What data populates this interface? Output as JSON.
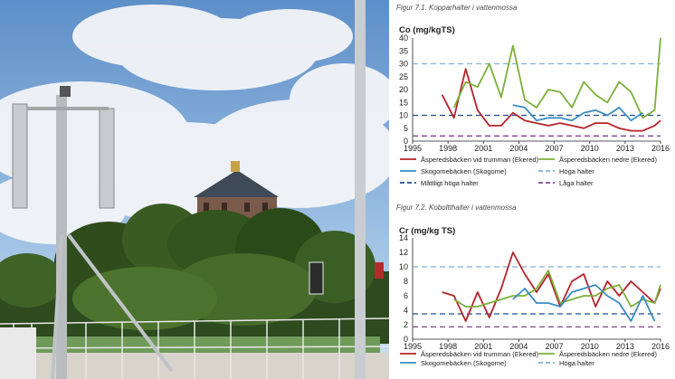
{
  "colors": {
    "red": "#b5232a",
    "green": "#7bb03a",
    "blue": "#3a8cc3",
    "light_blue_dashed": "#7fb0dd",
    "dark_blue_dashed": "#1f4f8f",
    "purple_dashed": "#7b4a8e",
    "axis": "#222222"
  },
  "chart_data": [
    {
      "type": "line",
      "caption": "Figur 7.1. Kopparhalter i vattenmossa",
      "title": "Co (mg/kgTS)",
      "xlabel": "",
      "ylabel": "",
      "xlim": [
        1995,
        2016
      ],
      "ylim": [
        0,
        40
      ],
      "xticks": [
        1995,
        1998,
        2001,
        2004,
        2007,
        2010,
        2013,
        2016
      ],
      "yticks": [
        0,
        5,
        10,
        15,
        20,
        25,
        30,
        35,
        40
      ],
      "series": [
        {
          "name": "Åsperedsbäcken vid trumman (Ekered)",
          "color": "#b5232a",
          "x": [
            1997.5,
            1998.5,
            1999.5,
            2000.5,
            2001.5,
            2002.5,
            2003.5,
            2004.5,
            2005.5,
            2006.5,
            2007.5,
            2008.5,
            2009.5,
            2010.5,
            2011.5,
            2012.5,
            2013.5,
            2014.5,
            2015.5,
            2016
          ],
          "y": [
            18,
            9,
            28,
            12,
            6,
            6,
            11,
            8,
            7,
            6,
            7,
            6,
            5,
            7,
            7,
            5,
            4,
            4,
            6,
            8
          ]
        },
        {
          "name": "Åsperedsbäcken nedre (Ekered)",
          "color": "#7bb03a",
          "x": [
            1998.5,
            1999.5,
            2000.5,
            2001.5,
            2002.5,
            2003.5,
            2004.5,
            2005.5,
            2006.5,
            2007.5,
            2008.5,
            2009.5,
            2010.5,
            2011.5,
            2012.5,
            2013.5,
            2014.5,
            2015.5,
            2016
          ],
          "y": [
            13,
            23,
            21,
            30,
            17,
            37,
            16,
            13,
            20,
            19,
            13,
            23,
            18,
            15,
            23,
            19,
            9,
            12,
            40
          ]
        },
        {
          "name": "Skogomebäcken (Skogome)",
          "color": "#3a8cc3",
          "x": [
            2003.5,
            2004.5,
            2005.5,
            2006.5,
            2007.5,
            2008.5,
            2009.5,
            2010.5,
            2011.5,
            2012.5,
            2013.5,
            2014.5
          ],
          "y": [
            14,
            13,
            8,
            9,
            9,
            8,
            11,
            12,
            10,
            13,
            8,
            11
          ]
        }
      ],
      "hlines": [
        {
          "name": "Höga halter",
          "value": 30,
          "color": "#7fb0dd"
        },
        {
          "name": "Måttligt höga halter",
          "value": 10,
          "color": "#1f4f8f"
        },
        {
          "name": "Låga halter",
          "value": 2,
          "color": "#7b4a8e"
        }
      ],
      "legend": [
        {
          "label": "Åsperedsbäcken vid trumman (Ekered)",
          "color": "#b5232a",
          "dashed": false
        },
        {
          "label": "Åsperedsbäcken nedre (Ekered)",
          "color": "#7bb03a",
          "dashed": false
        },
        {
          "label": "Skogomebäcken (Skogome)",
          "color": "#3a8cc3",
          "dashed": false
        },
        {
          "label": "Höga halter",
          "color": "#7fb0dd",
          "dashed": true
        },
        {
          "label": "Måttligt höga halter",
          "color": "#1f4f8f",
          "dashed": true
        },
        {
          "label": "Låga halter",
          "color": "#7b4a8e",
          "dashed": true
        }
      ]
    },
    {
      "type": "line",
      "caption": "Figur 7.2. Koboltthalter i vattenmossa",
      "title": "Cr (mg/kg TS)",
      "xlabel": "",
      "ylabel": "",
      "xlim": [
        1995,
        2016
      ],
      "ylim": [
        0,
        14
      ],
      "xticks": [
        1995,
        1998,
        2001,
        2004,
        2007,
        2010,
        2013,
        2016
      ],
      "yticks": [
        0,
        2,
        4,
        6,
        8,
        10,
        12,
        14
      ],
      "series": [
        {
          "name": "Åsperedsbäcken vid trumman (Ekered)",
          "color": "#b5232a",
          "x": [
            1997.5,
            1998.5,
            1999.5,
            2000.5,
            2001.5,
            2002.5,
            2003.5,
            2004.5,
            2005.5,
            2006.5,
            2007.5,
            2008.5,
            2009.5,
            2010.5,
            2011.5,
            2012.5,
            2013.5,
            2014.5,
            2015.5,
            2016
          ],
          "y": [
            6.5,
            6,
            2.5,
            6.5,
            3,
            7,
            12,
            9,
            6.5,
            9,
            4.5,
            8,
            9,
            4.5,
            8,
            6,
            8,
            6.5,
            5,
            7
          ]
        },
        {
          "name": "Åsperedsbäcken nedre (Ekered)",
          "color": "#7bb03a",
          "x": [
            1998.5,
            1999.5,
            2000.5,
            2001.5,
            2002.5,
            2003.5,
            2004.5,
            2005.5,
            2006.5,
            2007.5,
            2008.5,
            2009.5,
            2010.5,
            2011.5,
            2012.5,
            2013.5,
            2014.5,
            2015.5,
            2016
          ],
          "y": [
            5.5,
            4.5,
            4.5,
            5,
            5.5,
            6,
            6,
            7,
            9.5,
            5,
            5.5,
            6,
            6,
            7,
            7.5,
            4.5,
            5.5,
            5,
            7.5
          ]
        },
        {
          "name": "Skogomebäcken (Skogome)",
          "color": "#3a8cc3",
          "x": [
            2003.5,
            2004.5,
            2005.5,
            2006.5,
            2007.5,
            2008.5,
            2009.5,
            2010.5,
            2011.5,
            2012.5,
            2013.5,
            2014.5,
            2015.5
          ],
          "y": [
            5.5,
            7,
            5,
            5,
            4.5,
            6.5,
            7,
            7.5,
            6,
            5,
            2.5,
            6,
            2.5
          ]
        }
      ],
      "hlines": [
        {
          "name": "Höga halter",
          "value": 10,
          "color": "#7fb0dd"
        },
        {
          "name": "Måttligt höga halter",
          "value": 3.5,
          "color": "#1f4f8f"
        },
        {
          "name": "Låga halter",
          "value": 1.7,
          "color": "#7b4a8e"
        }
      ],
      "legend": [
        {
          "label": "Åsperedsbäcken vid trumman (Ekered)",
          "color": "#b5232a",
          "dashed": false
        },
        {
          "label": "Åsperedsbäcken nedre (Ekered)",
          "color": "#7bb03a",
          "dashed": false
        },
        {
          "label": "Skogomebäcken (Skogome)",
          "color": "#3a8cc3",
          "dashed": false
        },
        {
          "label": "Höga halter",
          "color": "#7fb0dd",
          "dashed": true
        }
      ]
    }
  ]
}
